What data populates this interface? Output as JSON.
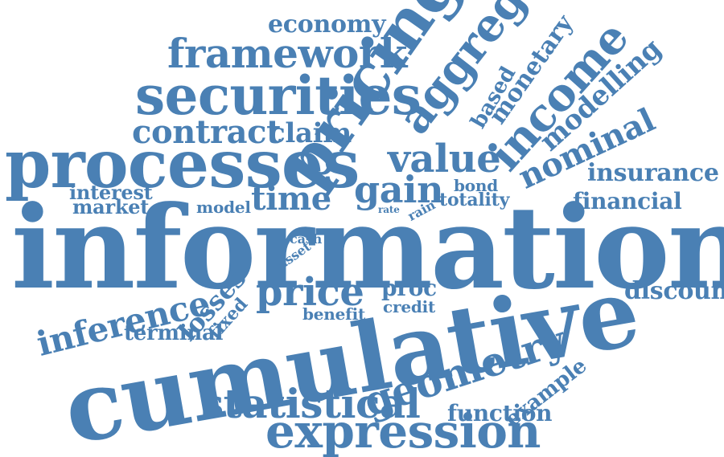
{
  "color": "#4a80b4",
  "words": {
    "information": "information",
    "cumulative": "cumulative",
    "processes": "processes",
    "pricing": "pricing",
    "securities": "securities",
    "framework": "framework",
    "aggregate": "aggregate",
    "economy": "economy",
    "income": "income",
    "monetary": "monetary",
    "based": "based",
    "modelling": "modelling",
    "nominal": "nominal",
    "insurance": "insurance",
    "financial": "financial",
    "contract": "contract",
    "claim": "claim",
    "value": "value",
    "gain": "gain",
    "time": "time",
    "interest": "interest",
    "market": "market",
    "model": "model",
    "bond": "bond",
    "totality": "totality",
    "rate": "rate",
    "rain": "rain",
    "cash": "cash",
    "asset": "asset",
    "inference": "inference",
    "losses": "losses",
    "fixed": "fixed",
    "price": "price",
    "proc": "proc",
    "credit": "credit",
    "benefit": "benefit",
    "discount": "discount",
    "terminal": "terminal",
    "example": "example",
    "geometry": "geometry",
    "statistical": "statistical",
    "function": "function",
    "expression": "expression"
  }
}
